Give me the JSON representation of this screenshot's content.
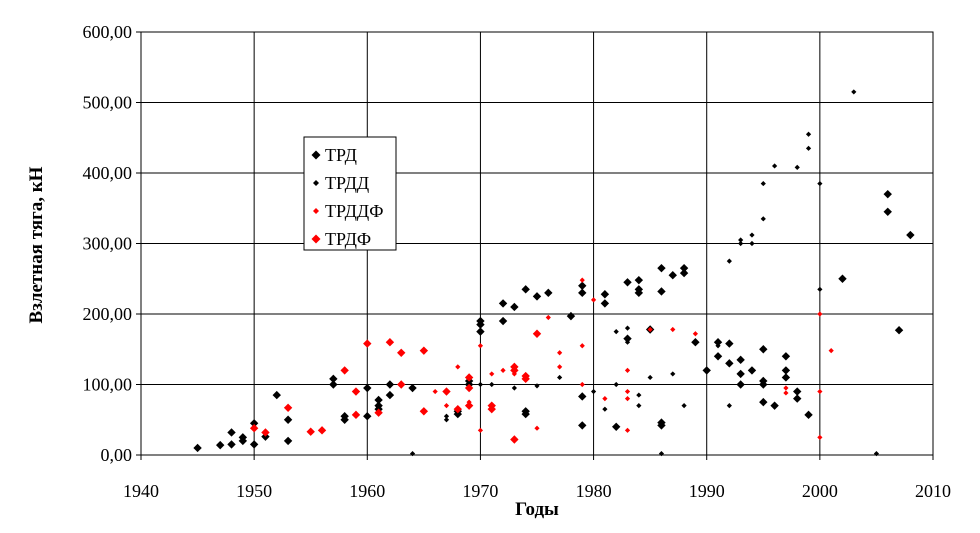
{
  "chart_data": {
    "type": "scatter",
    "xlabel": "Годы",
    "ylabel": "Взлетная тяга, кН",
    "xlim": [
      1940,
      2010
    ],
    "ylim": [
      0,
      600
    ],
    "x_ticks": [
      "1940",
      "1950",
      "1960",
      "1970",
      "1980",
      "1990",
      "2000",
      "2010"
    ],
    "y_ticks": [
      "0,00",
      "100,00",
      "200,00",
      "300,00",
      "400,00",
      "500,00",
      "600,00"
    ],
    "grid": true,
    "legend_position": "upper-left-inside",
    "series": [
      {
        "name": "ТРД",
        "color": "#000000",
        "marker": "diamond",
        "points": [
          [
            1945,
            10
          ],
          [
            1947,
            14
          ],
          [
            1948,
            15
          ],
          [
            1948,
            32
          ],
          [
            1949,
            25
          ],
          [
            1949,
            20
          ],
          [
            1950,
            45
          ],
          [
            1950,
            15
          ],
          [
            1951,
            26
          ],
          [
            1952,
            85
          ],
          [
            1953,
            50
          ],
          [
            1953,
            20
          ],
          [
            1957,
            108
          ],
          [
            1957,
            100
          ],
          [
            1958,
            55
          ],
          [
            1958,
            50
          ],
          [
            1960,
            95
          ],
          [
            1960,
            55
          ],
          [
            1961,
            78
          ],
          [
            1961,
            70
          ],
          [
            1961,
            65
          ],
          [
            1962,
            85
          ],
          [
            1962,
            100
          ],
          [
            1964,
            95
          ],
          [
            1968,
            62
          ],
          [
            1968,
            58
          ],
          [
            1969,
            105
          ],
          [
            1969,
            100
          ],
          [
            1970,
            190
          ],
          [
            1970,
            185
          ],
          [
            1970,
            175
          ],
          [
            1972,
            215
          ],
          [
            1972,
            190
          ],
          [
            1973,
            210
          ],
          [
            1974,
            235
          ],
          [
            1974,
            62
          ],
          [
            1974,
            58
          ],
          [
            1975,
            225
          ],
          [
            1976,
            230
          ],
          [
            1978,
            197
          ],
          [
            1979,
            230
          ],
          [
            1979,
            240
          ],
          [
            1979,
            83
          ],
          [
            1979,
            42
          ],
          [
            1981,
            228
          ],
          [
            1981,
            215
          ],
          [
            1982,
            40
          ],
          [
            1983,
            165
          ],
          [
            1983,
            245
          ],
          [
            1984,
            248
          ],
          [
            1984,
            235
          ],
          [
            1984,
            230
          ],
          [
            1985,
            178
          ],
          [
            1986,
            265
          ],
          [
            1986,
            232
          ],
          [
            1986,
            46
          ],
          [
            1986,
            42
          ],
          [
            1987,
            255
          ],
          [
            1988,
            265
          ],
          [
            1988,
            258
          ],
          [
            1989,
            160
          ],
          [
            1990,
            120
          ],
          [
            1991,
            160
          ],
          [
            1991,
            140
          ],
          [
            1992,
            158
          ],
          [
            1992,
            130
          ],
          [
            1993,
            135
          ],
          [
            1993,
            115
          ],
          [
            1993,
            100
          ],
          [
            1994,
            120
          ],
          [
            1995,
            150
          ],
          [
            1995,
            105
          ],
          [
            1995,
            100
          ],
          [
            1995,
            75
          ],
          [
            1996,
            70
          ],
          [
            1997,
            140
          ],
          [
            1997,
            120
          ],
          [
            1997,
            110
          ],
          [
            1998,
            90
          ],
          [
            1998,
            80
          ],
          [
            1999,
            57
          ],
          [
            2002,
            250
          ],
          [
            2006,
            370
          ],
          [
            2006,
            345
          ],
          [
            2007,
            177
          ],
          [
            2008,
            312
          ]
        ]
      },
      {
        "name": "ТРДД",
        "color": "#000000",
        "marker": "small-diamond",
        "points": [
          [
            1964,
            2
          ],
          [
            1965,
            62
          ],
          [
            1967,
            55
          ],
          [
            1967,
            50
          ],
          [
            1970,
            100
          ],
          [
            1971,
            100
          ],
          [
            1973,
            95
          ],
          [
            1975,
            98
          ],
          [
            1977,
            110
          ],
          [
            1980,
            90
          ],
          [
            1981,
            65
          ],
          [
            1982,
            175
          ],
          [
            1982,
            100
          ],
          [
            1983,
            180
          ],
          [
            1983,
            160
          ],
          [
            1984,
            85
          ],
          [
            1984,
            70
          ],
          [
            1985,
            110
          ],
          [
            1986,
            2
          ],
          [
            1987,
            115
          ],
          [
            1988,
            70
          ],
          [
            1990,
            118
          ],
          [
            1991,
            155
          ],
          [
            1992,
            275
          ],
          [
            1992,
            70
          ],
          [
            1993,
            305
          ],
          [
            1993,
            300
          ],
          [
            1994,
            300
          ],
          [
            1994,
            312
          ],
          [
            1995,
            385
          ],
          [
            1995,
            335
          ],
          [
            1996,
            410
          ],
          [
            1998,
            408
          ],
          [
            1999,
            455
          ],
          [
            1999,
            435
          ],
          [
            2000,
            385
          ],
          [
            2000,
            235
          ],
          [
            2003,
            515
          ],
          [
            2005,
            2
          ]
        ]
      },
      {
        "name": "ТРДДФ",
        "color": "#ff0000",
        "marker": "small-diamond",
        "points": [
          [
            1966,
            90
          ],
          [
            1967,
            70
          ],
          [
            1968,
            125
          ],
          [
            1969,
            75
          ],
          [
            1970,
            155
          ],
          [
            1970,
            35
          ],
          [
            1971,
            115
          ],
          [
            1972,
            120
          ],
          [
            1973,
            115
          ],
          [
            1975,
            38
          ],
          [
            1976,
            195
          ],
          [
            1977,
            145
          ],
          [
            1977,
            125
          ],
          [
            1979,
            248
          ],
          [
            1979,
            155
          ],
          [
            1979,
            100
          ],
          [
            1980,
            220
          ],
          [
            1981,
            80
          ],
          [
            1983,
            120
          ],
          [
            1983,
            90
          ],
          [
            1983,
            80
          ],
          [
            1983,
            35
          ],
          [
            1985,
            178
          ],
          [
            1987,
            178
          ],
          [
            1989,
            172
          ],
          [
            1997,
            95
          ],
          [
            1997,
            88
          ],
          [
            2000,
            200
          ],
          [
            2000,
            90
          ],
          [
            2000,
            25
          ],
          [
            2001,
            148
          ]
        ]
      },
      {
        "name": "ТРДФ",
        "color": "#ff0000",
        "marker": "diamond",
        "points": [
          [
            1950,
            38
          ],
          [
            1951,
            32
          ],
          [
            1953,
            67
          ],
          [
            1955,
            33
          ],
          [
            1956,
            35
          ],
          [
            1958,
            120
          ],
          [
            1959,
            90
          ],
          [
            1959,
            57
          ],
          [
            1960,
            158
          ],
          [
            1961,
            60
          ],
          [
            1962,
            160
          ],
          [
            1963,
            145
          ],
          [
            1963,
            100
          ],
          [
            1965,
            148
          ],
          [
            1965,
            62
          ],
          [
            1967,
            90
          ],
          [
            1968,
            65
          ],
          [
            1969,
            110
          ],
          [
            1969,
            95
          ],
          [
            1969,
            70
          ],
          [
            1971,
            70
          ],
          [
            1971,
            65
          ],
          [
            1973,
            125
          ],
          [
            1973,
            120
          ],
          [
            1973,
            22
          ],
          [
            1974,
            112
          ],
          [
            1974,
            108
          ],
          [
            1975,
            172
          ]
        ]
      }
    ]
  }
}
